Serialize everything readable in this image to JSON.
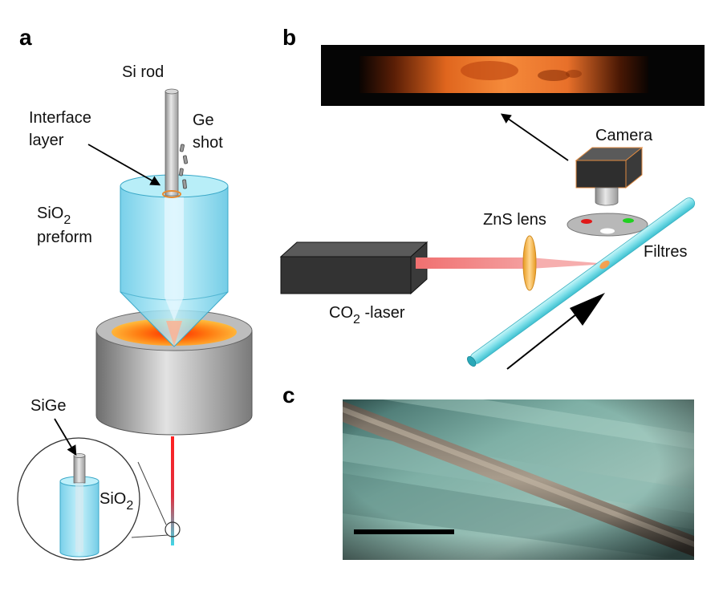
{
  "panels": {
    "a": "a",
    "b": "b",
    "c": "c"
  },
  "panel_a": {
    "si_rod": "Si rod",
    "interface_line1": "Interface",
    "interface_line2": "layer",
    "ge_line1": "Ge",
    "ge_line2": "shot",
    "sio2_prefix": "SiO",
    "sio2_sub": "2",
    "preform": "preform",
    "sige": "SiGe",
    "inset_sio2_prefix": "SiO",
    "inset_sio2_sub": "2"
  },
  "panel_b": {
    "camera": "Camera",
    "zns_lens": "ZnS lens",
    "filtres": "Filtres",
    "laser_prefix": "CO",
    "laser_sub": "2",
    "laser_suffix": " -laser"
  },
  "colors": {
    "preform_blue": "#7fd8ee",
    "fiber_cyan": "#8ee8ee",
    "furnace_grey": "#9a9a9a",
    "hot_zone": "#ff7a10",
    "laser_box": "#2e2e2e",
    "beam_red": "#f08080",
    "lens_orange": "#f0b040",
    "micrograph_teal": "#7aa8a0"
  }
}
